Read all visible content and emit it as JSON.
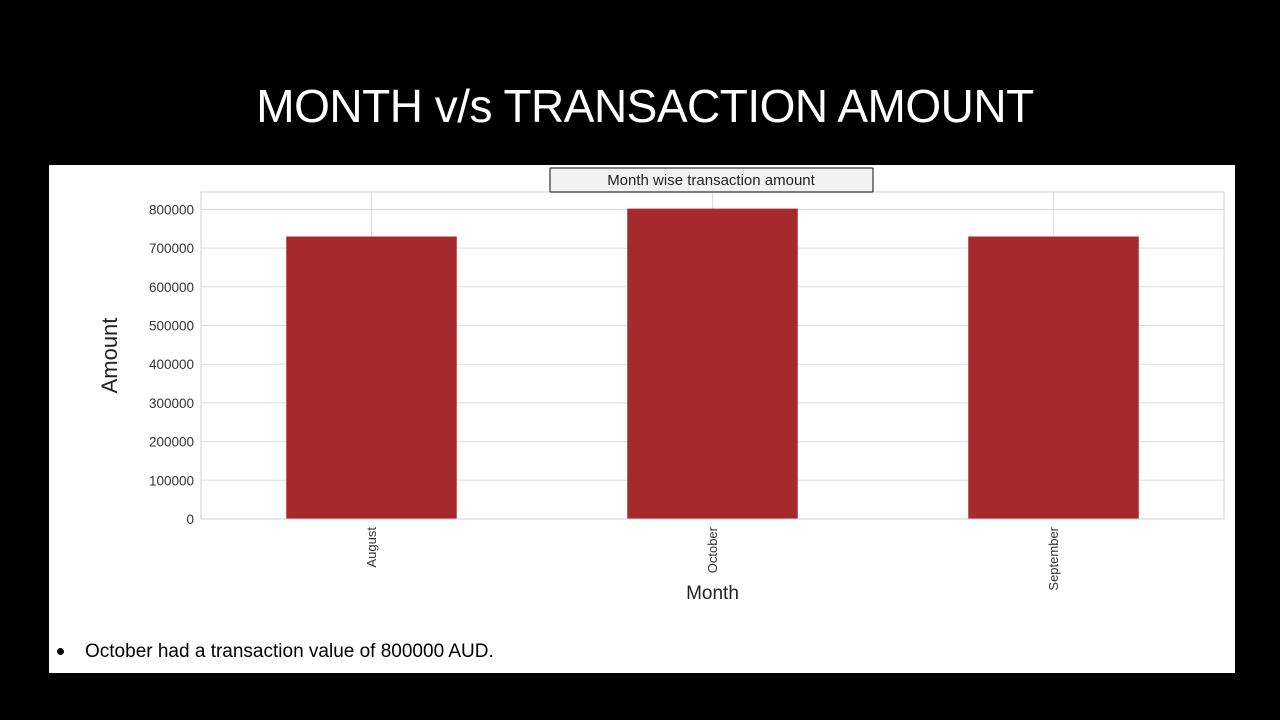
{
  "slide": {
    "title": "MONTH v/s TRANSACTION AMOUNT"
  },
  "colors": {
    "bar": "#a62a2d",
    "grid": "#dddddd",
    "background": "#000000",
    "panel": "#ffffff"
  },
  "chart_data": {
    "type": "bar",
    "title": "Month wise transaction amount",
    "xlabel": "Month",
    "ylabel": "Amount",
    "categories": [
      "August",
      "October",
      "September"
    ],
    "values": [
      730000,
      802000,
      730000
    ],
    "ylim": [
      0,
      845000
    ],
    "yticks": [
      0,
      100000,
      200000,
      300000,
      400000,
      500000,
      600000,
      700000,
      800000
    ],
    "grid": true,
    "legend": "none"
  },
  "notes": [
    "October had a transaction value of 800000 AUD."
  ]
}
